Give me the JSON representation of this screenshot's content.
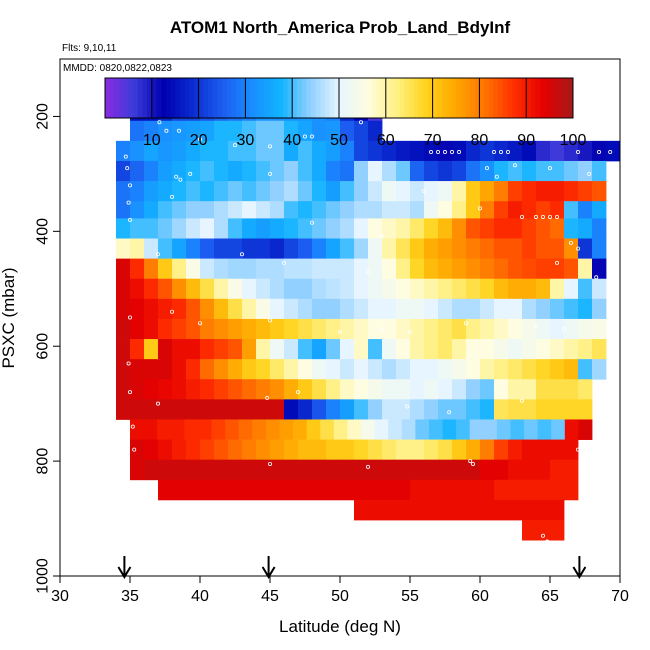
{
  "chart_data": {
    "type": "heatmap",
    "title": "ATOM1 North_America Prob_Land_BdyInf",
    "annotations": [
      "Flts: 9,10,11",
      "MMDD: 0820,0822,0823"
    ],
    "xlabel": "Latitude (deg N)",
    "ylabel": "PSXC (mbar)",
    "xlim": [
      30,
      70
    ],
    "ylim": [
      1000,
      100
    ],
    "y_reversed": true,
    "xticks": [
      30,
      35,
      40,
      45,
      50,
      55,
      60,
      65,
      70
    ],
    "yticks": [
      200,
      400,
      600,
      800,
      1000
    ],
    "grid": false,
    "colorbar": {
      "range": [
        0,
        100
      ],
      "ticks": [
        10,
        20,
        30,
        40,
        50,
        60,
        70,
        80,
        90,
        100
      ],
      "placement": "top-inside",
      "colors": [
        "#8a2be2",
        "#3b3bd9",
        "#0000b0",
        "#0a2cd0",
        "#1c5cf0",
        "#1a8cff",
        "#11b4ff",
        "#8fd0ff",
        "#e6f5ff",
        "#fffde0",
        "#fff080",
        "#ffd21a",
        "#ffa600",
        "#ff7300",
        "#ff2e00",
        "#e60000",
        "#a31a1a"
      ]
    },
    "arrow_markers_x": [
      34.6,
      44.9,
      67.1
    ],
    "rows": [
      {
        "p": 190,
        "x0": 35,
        "x1": 53,
        "v": [
          15,
          15,
          18,
          22,
          22,
          24,
          26,
          28,
          30,
          32,
          32,
          32,
          33,
          32,
          30,
          18,
          12,
          5
        ]
      },
      {
        "p": 225,
        "x0": 35,
        "x1": 53,
        "v": [
          28,
          30,
          32,
          33,
          34,
          35,
          38,
          38,
          40,
          42,
          42,
          38,
          35,
          32,
          33,
          25,
          22,
          18
        ]
      },
      {
        "p": 260,
        "x0": 34,
        "x1": 70,
        "v": [
          30,
          32,
          35,
          33,
          34,
          36,
          38,
          38,
          40,
          40,
          42,
          42,
          36,
          40,
          36,
          34,
          30,
          22,
          20,
          18,
          16,
          15,
          14,
          12,
          14,
          18,
          20,
          18,
          16,
          14,
          8,
          6,
          8,
          10,
          12,
          14
        ]
      },
      {
        "p": 295,
        "x0": 34,
        "x1": 69,
        "v": [
          22,
          26,
          30,
          34,
          36,
          38,
          40,
          38,
          36,
          38,
          40,
          42,
          44,
          40,
          36,
          30,
          28,
          44,
          50,
          46,
          42,
          26,
          22,
          20,
          22,
          28,
          32,
          38,
          40,
          38,
          40,
          40,
          42,
          44,
          40
        ]
      },
      {
        "p": 330,
        "x0": 34,
        "x1": 69,
        "v": [
          28,
          30,
          34,
          36,
          38,
          40,
          38,
          40,
          42,
          40,
          42,
          44,
          46,
          42,
          38,
          34,
          40,
          44,
          48,
          52,
          50,
          48,
          50,
          52,
          60,
          70,
          75,
          80,
          86,
          88,
          90,
          90,
          88,
          86,
          84
        ]
      },
      {
        "p": 365,
        "x0": 34,
        "x1": 69,
        "v": [
          28,
          32,
          36,
          40,
          42,
          44,
          44,
          46,
          48,
          50,
          48,
          46,
          40,
          38,
          40,
          42,
          44,
          46,
          46,
          48,
          48,
          46,
          52,
          56,
          62,
          70,
          80,
          86,
          90,
          88,
          86,
          88,
          40,
          30,
          36
        ]
      },
      {
        "p": 395,
        "x0": 34,
        "x1": 69,
        "v": [
          38,
          40,
          40,
          42,
          45,
          48,
          50,
          46,
          40,
          36,
          34,
          36,
          38,
          40,
          42,
          44,
          46,
          50,
          56,
          58,
          60,
          64,
          68,
          72,
          78,
          84,
          86,
          88,
          88,
          86,
          84,
          82,
          38,
          36,
          30
        ]
      },
      {
        "p": 430,
        "x0": 34,
        "x1": 69,
        "v": [
          58,
          60,
          48,
          40,
          35,
          30,
          25,
          22,
          22,
          20,
          20,
          18,
          22,
          25,
          30,
          35,
          40,
          45,
          52,
          60,
          65,
          70,
          74,
          76,
          78,
          80,
          82,
          84,
          84,
          86,
          84,
          84,
          78,
          20,
          30
        ]
      },
      {
        "p": 465,
        "x0": 34,
        "x1": 69,
        "v": [
          95,
          88,
          80,
          70,
          62,
          55,
          48,
          46,
          45,
          45,
          46,
          46,
          47,
          47,
          48,
          48,
          48,
          50,
          52,
          56,
          62,
          68,
          72,
          74,
          76,
          78,
          80,
          82,
          84,
          85,
          86,
          86,
          84,
          60,
          12
        ]
      },
      {
        "p": 500,
        "x0": 34,
        "x1": 69,
        "v": [
          95,
          92,
          88,
          84,
          78,
          72,
          66,
          60,
          55,
          50,
          48,
          46,
          44,
          44,
          46,
          47,
          48,
          50,
          52,
          54,
          56,
          58,
          60,
          62,
          64,
          66,
          68,
          72,
          74,
          74,
          72,
          60,
          50,
          40,
          48
        ]
      },
      {
        "p": 535,
        "x0": 34,
        "x1": 69,
        "v": [
          95,
          94,
          92,
          90,
          88,
          84,
          78,
          72,
          66,
          60,
          55,
          50,
          48,
          46,
          44,
          44,
          46,
          48,
          50,
          50,
          52,
          52,
          50,
          48,
          46,
          46,
          48,
          50,
          50,
          46,
          44,
          42,
          40,
          38,
          44
        ]
      },
      {
        "p": 570,
        "x0": 34,
        "x1": 69,
        "v": [
          96,
          94,
          92,
          88,
          86,
          84,
          80,
          78,
          76,
          74,
          72,
          70,
          68,
          66,
          64,
          62,
          60,
          58,
          56,
          56,
          58,
          60,
          62,
          64,
          66,
          62,
          60,
          58,
          56,
          54,
          52,
          50,
          52,
          54,
          55
        ]
      },
      {
        "p": 605,
        "x0": 34,
        "x1": 69,
        "v": [
          96,
          88,
          70,
          95,
          92,
          92,
          88,
          86,
          84,
          76,
          60,
          52,
          48,
          40,
          35,
          42,
          50,
          58,
          40,
          52,
          56,
          60,
          62,
          64,
          60,
          56,
          56,
          54,
          52,
          54,
          56,
          58,
          60,
          62,
          65
        ]
      },
      {
        "p": 640,
        "x0": 34,
        "x1": 69,
        "v": [
          96,
          95,
          95,
          95,
          92,
          88,
          82,
          78,
          74,
          70,
          68,
          64,
          60,
          56,
          52,
          50,
          48,
          50,
          48,
          46,
          48,
          50,
          50,
          52,
          54,
          56,
          60,
          62,
          64,
          66,
          68,
          70,
          72,
          40,
          45
        ]
      },
      {
        "p": 675,
        "x0": 34,
        "x1": 68,
        "v": [
          96,
          95,
          94,
          93,
          92,
          90,
          88,
          86,
          84,
          82,
          80,
          78,
          74,
          70,
          66,
          62,
          58,
          56,
          54,
          52,
          52,
          50,
          52,
          50,
          48,
          44,
          42,
          56,
          60,
          60,
          66,
          66,
          66,
          64
        ]
      },
      {
        "p": 710,
        "x0": 34,
        "x1": 68,
        "v": [
          96,
          96,
          96,
          96,
          96,
          96,
          96,
          96,
          96,
          96,
          96,
          96,
          14,
          18,
          24,
          30,
          34,
          40,
          44,
          48,
          48,
          46,
          44,
          42,
          42,
          40,
          38,
          65,
          66,
          66,
          68,
          68,
          68,
          68
        ]
      },
      {
        "p": 745,
        "x0": 35,
        "x1": 68,
        "v": [
          92,
          92,
          90,
          90,
          88,
          88,
          86,
          84,
          82,
          80,
          78,
          76,
          74,
          70,
          66,
          62,
          58,
          54,
          50,
          48,
          46,
          42,
          40,
          38,
          40,
          44,
          44,
          42,
          40,
          42,
          40,
          42,
          92,
          95
        ]
      },
      {
        "p": 780,
        "x0": 35,
        "x1": 67,
        "v": [
          95,
          94,
          92,
          90,
          88,
          86,
          84,
          82,
          80,
          78,
          76,
          74,
          72,
          72,
          70,
          70,
          68,
          66,
          64,
          62,
          62,
          64,
          66,
          70,
          74,
          80,
          86,
          90,
          92,
          92,
          92,
          92
        ]
      },
      {
        "p": 815,
        "x0": 35,
        "x1": 67,
        "v": [
          95,
          96,
          96,
          96,
          96,
          96,
          96,
          96,
          96,
          96,
          96,
          96,
          96,
          96,
          96,
          96,
          96,
          96,
          96,
          96,
          96,
          96,
          96,
          96,
          96,
          94,
          94,
          92,
          92,
          92,
          90,
          90
        ]
      },
      {
        "p": 850,
        "x0": 37,
        "x1": 67,
        "v": [
          94,
          94,
          94,
          94,
          94,
          94,
          94,
          94,
          94,
          94,
          94,
          94,
          94,
          94,
          94,
          94,
          94,
          94,
          92,
          92,
          92,
          92,
          92,
          92,
          90,
          90,
          90,
          90,
          90,
          90
        ]
      },
      {
        "p": 885,
        "x0": 51,
        "x1": 66,
        "v": [
          92,
          92,
          92,
          92,
          92,
          92,
          92,
          92,
          92,
          92,
          92,
          92,
          92,
          92,
          92
        ]
      },
      {
        "p": 920,
        "x0": 63,
        "x1": 66,
        "v": [
          90,
          90,
          90
        ]
      }
    ],
    "points": [
      [
        35.5,
        200
      ],
      [
        36,
        200
      ],
      [
        36.3,
        200
      ],
      [
        36.7,
        200
      ],
      [
        37.1,
        210
      ],
      [
        37.6,
        225
      ],
      [
        38.5,
        225
      ],
      [
        40,
        240
      ],
      [
        42.5,
        250
      ],
      [
        45,
        252
      ],
      [
        47.5,
        235
      ],
      [
        48,
        235
      ],
      [
        51.5,
        210
      ],
      [
        56.5,
        262
      ],
      [
        57,
        262
      ],
      [
        57.5,
        262
      ],
      [
        58,
        262
      ],
      [
        58.5,
        262
      ],
      [
        61,
        262
      ],
      [
        61.5,
        262
      ],
      [
        62,
        262
      ],
      [
        67,
        262
      ],
      [
        68.5,
        262
      ],
      [
        69.3,
        262
      ],
      [
        34.7,
        270
      ],
      [
        34.8,
        290
      ],
      [
        35,
        320
      ],
      [
        34.9,
        350
      ],
      [
        35,
        380
      ],
      [
        38.3,
        305
      ],
      [
        38.6,
        310
      ],
      [
        39.3,
        300
      ],
      [
        45,
        300
      ],
      [
        60.5,
        290
      ],
      [
        61.2,
        305
      ],
      [
        62.5,
        285
      ],
      [
        65,
        290
      ],
      [
        67.8,
        300
      ],
      [
        38,
        340
      ],
      [
        48,
        385
      ],
      [
        53,
        408
      ],
      [
        56,
        330
      ],
      [
        60,
        360
      ],
      [
        63,
        375
      ],
      [
        64,
        375
      ],
      [
        64.5,
        375
      ],
      [
        65,
        375
      ],
      [
        65.5,
        375
      ],
      [
        37,
        440
      ],
      [
        43,
        440
      ],
      [
        46,
        455
      ],
      [
        52,
        470
      ],
      [
        65.5,
        455
      ],
      [
        66.5,
        420
      ],
      [
        67,
        430
      ],
      [
        68.3,
        480
      ],
      [
        35,
        550
      ],
      [
        38,
        540
      ],
      [
        40,
        560
      ],
      [
        45,
        555
      ],
      [
        50,
        575
      ],
      [
        53,
        570
      ],
      [
        55,
        575
      ],
      [
        59,
        560
      ],
      [
        64,
        565
      ],
      [
        66,
        570
      ],
      [
        34.9,
        630
      ],
      [
        35,
        680
      ],
      [
        35.2,
        740
      ],
      [
        35.3,
        780
      ],
      [
        37,
        700
      ],
      [
        44.8,
        690
      ],
      [
        47,
        680
      ],
      [
        54.8,
        705
      ],
      [
        57.8,
        715
      ],
      [
        63,
        695
      ],
      [
        45,
        805
      ],
      [
        52,
        810
      ],
      [
        59.3,
        800
      ],
      [
        59.5,
        805
      ],
      [
        64.5,
        930
      ],
      [
        64.8,
        940
      ],
      [
        65,
        945
      ],
      [
        67,
        780
      ]
    ]
  }
}
